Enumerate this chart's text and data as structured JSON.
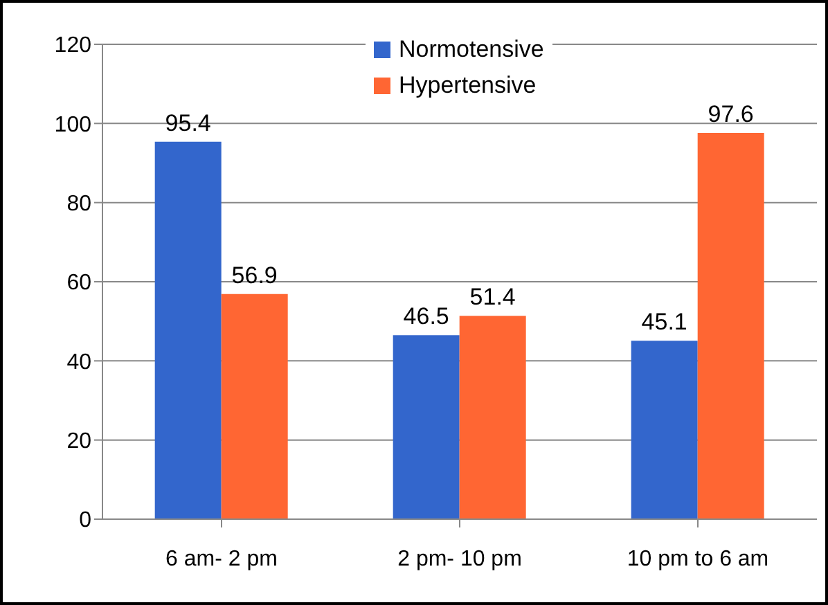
{
  "chart_data": {
    "type": "bar",
    "categories": [
      "6 am- 2 pm",
      "2 pm- 10 pm",
      "10 pm to 6 am"
    ],
    "series": [
      {
        "name": "Normotensive",
        "color": "#3366cc",
        "values": [
          95.4,
          46.5,
          45.1
        ]
      },
      {
        "name": "Hypertensive",
        "color": "#ff6633",
        "values": [
          56.9,
          51.4,
          97.6
        ]
      }
    ],
    "ylim": [
      0,
      120
    ],
    "yticks": [
      0,
      20,
      40,
      60,
      80,
      100,
      120
    ],
    "grid": "y",
    "legend": "top",
    "data_labels": true
  }
}
